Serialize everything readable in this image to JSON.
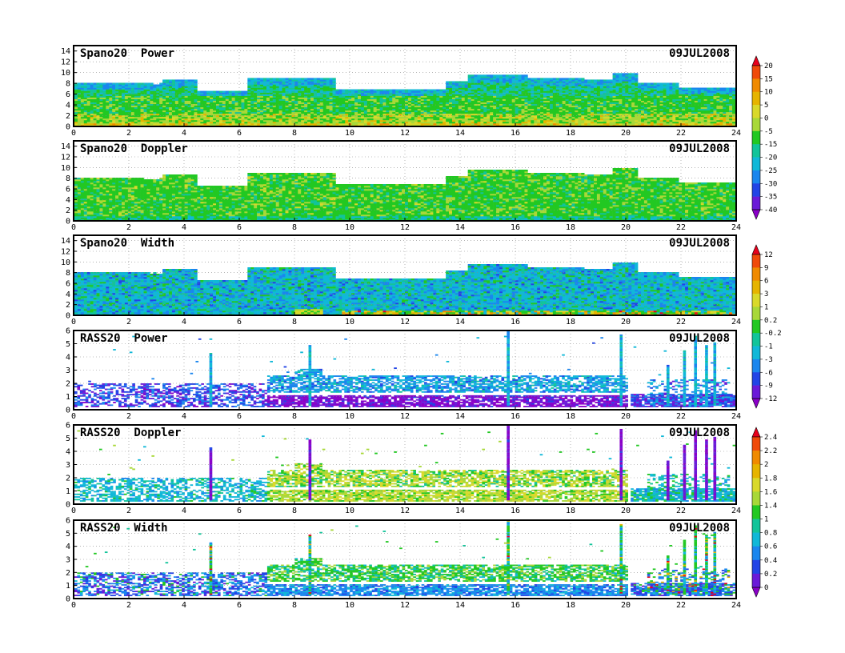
{
  "chart_data": [
    {
      "type": "heatmap",
      "title": "Spano20  Power",
      "date": "09JUL2008",
      "xlim": [
        0,
        24
      ],
      "ylim": [
        0,
        15
      ],
      "xticks": [
        0,
        2,
        4,
        6,
        8,
        10,
        12,
        14,
        16,
        18,
        20,
        22,
        24
      ],
      "yticks": [
        0,
        2,
        4,
        6,
        8,
        10,
        12,
        14
      ],
      "colorbar": 0,
      "field": "power",
      "top_profile": [
        [
          0,
          8
        ],
        [
          2.5,
          7.8
        ],
        [
          3.2,
          8.5
        ],
        [
          4.5,
          6.5
        ],
        [
          6.3,
          8.8
        ],
        [
          8.3,
          8.8
        ],
        [
          9.5,
          6.7
        ],
        [
          13.5,
          8.3
        ],
        [
          14.3,
          9.5
        ],
        [
          16.5,
          8.8
        ],
        [
          18.5,
          8.5
        ],
        [
          19.5,
          9.8
        ],
        [
          20.5,
          8.0
        ],
        [
          22,
          7.0
        ],
        [
          24,
          6.7
        ]
      ],
      "grid": true
    },
    {
      "type": "heatmap",
      "title": "Spano20  Doppler",
      "date": "09JUL2008",
      "xlim": [
        0,
        24
      ],
      "ylim": [
        0,
        15
      ],
      "xticks": [
        0,
        2,
        4,
        6,
        8,
        10,
        12,
        14,
        16,
        18,
        20,
        22,
        24
      ],
      "yticks": [
        0,
        2,
        4,
        6,
        8,
        10,
        12,
        14
      ],
      "colorbar": null,
      "field": "doppler",
      "top_profile": [
        [
          0,
          8
        ],
        [
          2.5,
          7.8
        ],
        [
          3.2,
          8.5
        ],
        [
          4.5,
          6.5
        ],
        [
          6.3,
          8.8
        ],
        [
          8.3,
          8.8
        ],
        [
          9.5,
          6.7
        ],
        [
          13.5,
          8.3
        ],
        [
          14.3,
          9.5
        ],
        [
          16.5,
          8.8
        ],
        [
          18.5,
          8.5
        ],
        [
          19.5,
          9.8
        ],
        [
          20.5,
          8.0
        ],
        [
          22,
          7.0
        ],
        [
          24,
          6.7
        ]
      ],
      "grid": true
    },
    {
      "type": "heatmap",
      "title": "Spano20  Width",
      "date": "09JUL2008",
      "xlim": [
        0,
        24
      ],
      "ylim": [
        0,
        15
      ],
      "xticks": [
        0,
        2,
        4,
        6,
        8,
        10,
        12,
        14,
        16,
        18,
        20,
        22,
        24
      ],
      "yticks": [
        0,
        2,
        4,
        6,
        8,
        10,
        12,
        14
      ],
      "colorbar": 1,
      "field": "width",
      "top_profile": [
        [
          0,
          8
        ],
        [
          2.5,
          7.8
        ],
        [
          3.2,
          8.5
        ],
        [
          4.5,
          6.5
        ],
        [
          6.3,
          8.8
        ],
        [
          8.3,
          8.8
        ],
        [
          9.5,
          6.7
        ],
        [
          13.5,
          8.3
        ],
        [
          14.3,
          9.5
        ],
        [
          16.5,
          8.8
        ],
        [
          18.5,
          8.5
        ],
        [
          19.5,
          9.8
        ],
        [
          20.5,
          8.0
        ],
        [
          22,
          7.0
        ],
        [
          24,
          6.7
        ]
      ],
      "grid": true
    },
    {
      "type": "heatmap",
      "title": "RASS20  Power",
      "date": "09JUL2008",
      "xlim": [
        0,
        24
      ],
      "ylim": [
        0,
        6
      ],
      "xticks": [
        0,
        2,
        4,
        6,
        8,
        10,
        12,
        14,
        16,
        18,
        20,
        22,
        24
      ],
      "yticks": [
        0,
        1,
        2,
        3,
        4,
        5,
        6
      ],
      "colorbar": 1,
      "field": "rpower",
      "grid": true
    },
    {
      "type": "heatmap",
      "title": "RASS20  Doppler",
      "date": "09JUL2008",
      "xlim": [
        0,
        24
      ],
      "ylim": [
        0,
        6
      ],
      "xticks": [
        0,
        2,
        4,
        6,
        8,
        10,
        12,
        14,
        16,
        18,
        20,
        22,
        24
      ],
      "yticks": [
        0,
        1,
        2,
        3,
        4,
        5,
        6
      ],
      "colorbar": 2,
      "field": "rdoppler",
      "grid": true
    },
    {
      "type": "heatmap",
      "title": "RASS20  Width",
      "date": "09JUL2008",
      "xlim": [
        0,
        24
      ],
      "ylim": [
        0,
        6
      ],
      "xticks": [
        0,
        2,
        4,
        6,
        8,
        10,
        12,
        14,
        16,
        18,
        20,
        22,
        24
      ],
      "yticks": [
        0,
        1,
        2,
        3,
        4,
        5,
        6
      ],
      "colorbar": 2,
      "field": "rwidth",
      "grid": true
    }
  ],
  "colorbars": [
    {
      "labels": [
        "20",
        "15",
        "10",
        "5",
        "0",
        "-5",
        "-15",
        "-20",
        "-25",
        "-30",
        "-35",
        "-40"
      ],
      "colors": [
        "#e8001c",
        "#f04a0a",
        "#f08a00",
        "#e6b400",
        "#d9d92a",
        "#a8d838",
        "#22c822",
        "#12c49a",
        "#10b8d8",
        "#1a86ee",
        "#2244e6",
        "#6a1ad8",
        "#8a00c8"
      ]
    },
    {
      "labels": [
        "12",
        "9",
        "6",
        "3",
        "1",
        "0.2",
        "-0.2",
        "-1",
        "-3",
        "-6",
        "-9",
        "-12"
      ],
      "colors": [
        "#e8001c",
        "#f04a0a",
        "#f08a00",
        "#e6b400",
        "#d9d92a",
        "#a8d838",
        "#22c822",
        "#12c49a",
        "#10b8d8",
        "#1a86ee",
        "#2244e6",
        "#6a1ad8",
        "#8a00c8"
      ]
    },
    {
      "labels": [
        "2.4",
        "2.2",
        "2",
        "1.8",
        "1.6",
        "1.4",
        "1",
        "0.8",
        "0.6",
        "0.4",
        "0.2",
        "0"
      ],
      "colors": [
        "#e8001c",
        "#f04a0a",
        "#f08a00",
        "#e6b400",
        "#d9d92a",
        "#a8d838",
        "#22c822",
        "#12c49a",
        "#10b8d8",
        "#1a86ee",
        "#2244e6",
        "#6a1ad8",
        "#8a00c8"
      ]
    }
  ]
}
